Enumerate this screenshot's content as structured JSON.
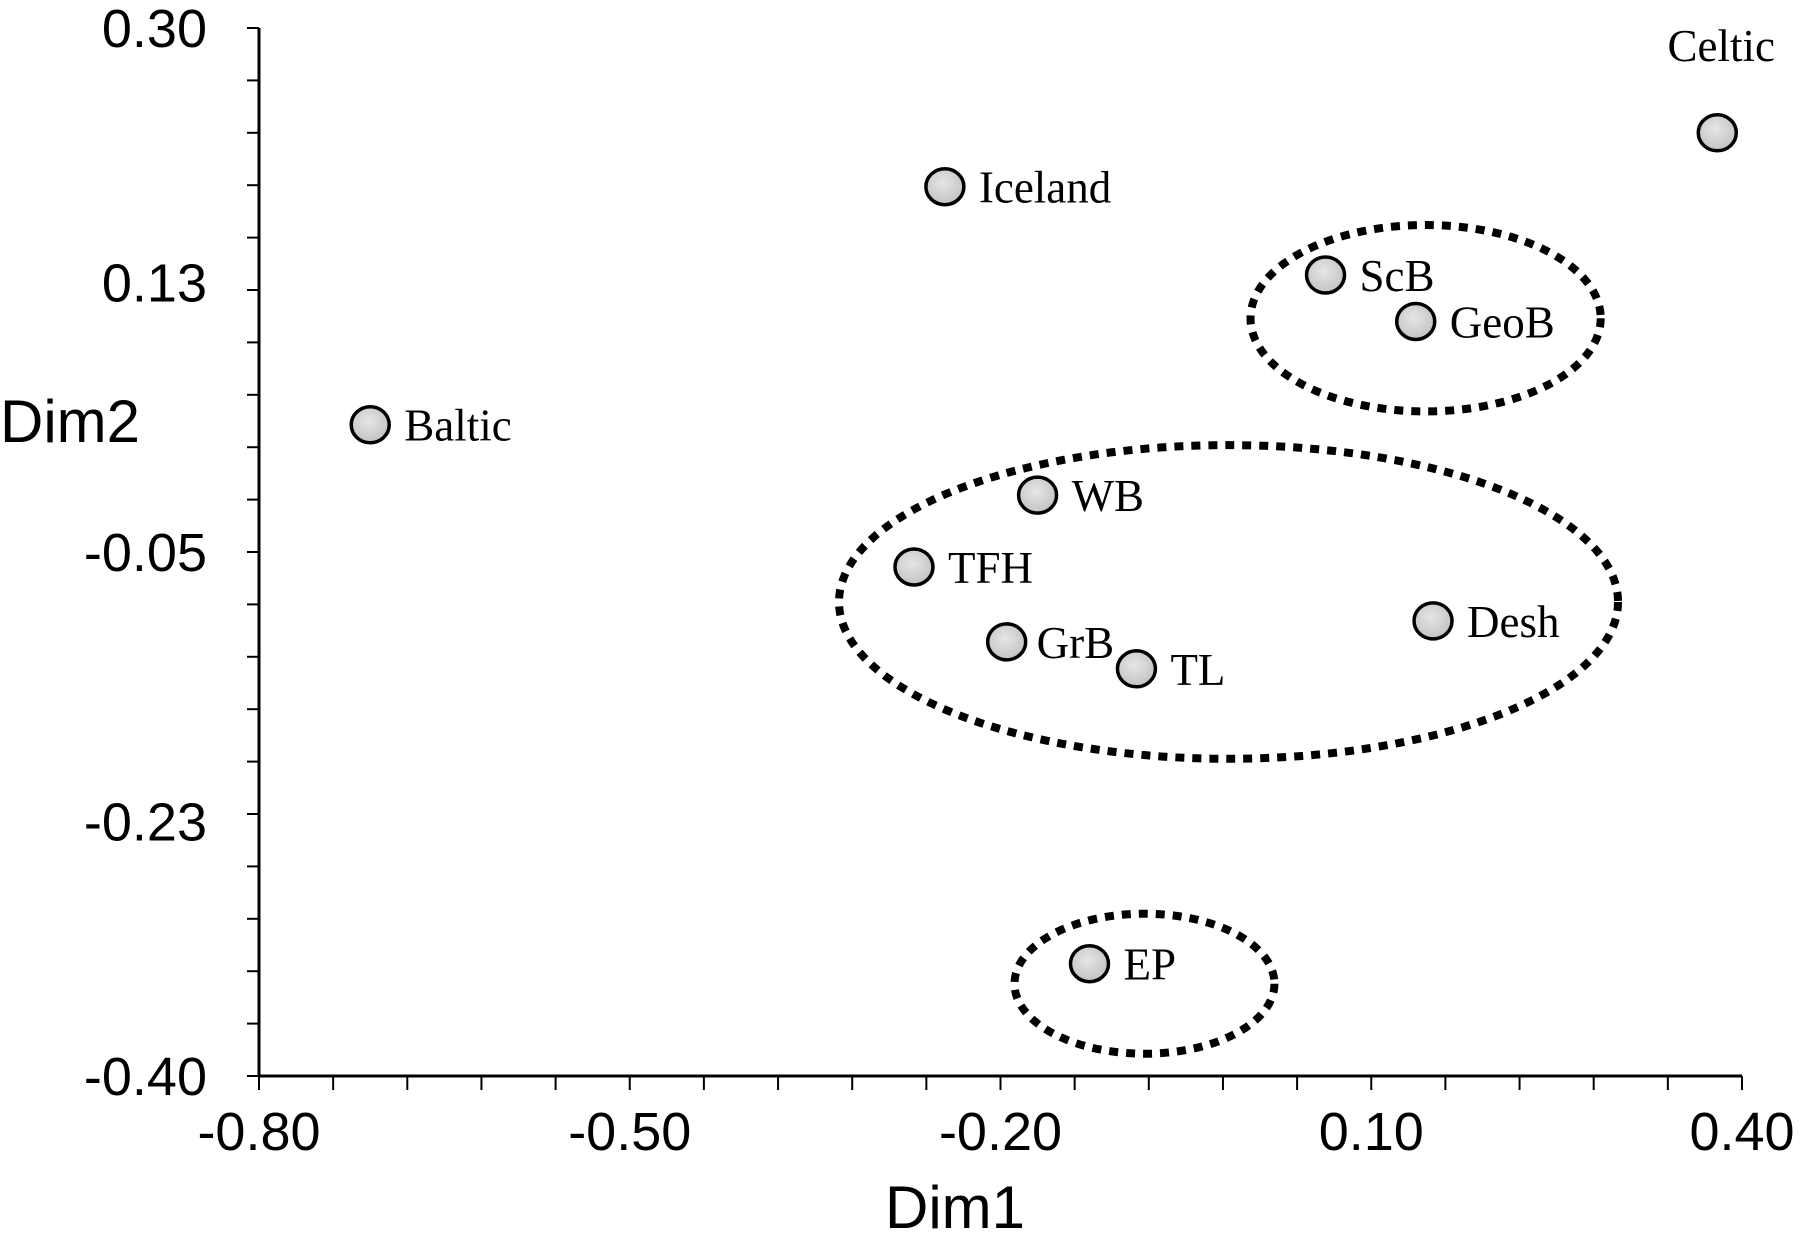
{
  "chart_data": {
    "type": "scatter",
    "title": "",
    "xlabel": "Dim1",
    "ylabel": "Dim2",
    "xlim": [
      -0.8,
      0.4
    ],
    "ylim": [
      -0.4,
      0.3
    ],
    "x_ticks": [
      "-0.80",
      "-0.50",
      "-0.20",
      "0.10",
      "0.40"
    ],
    "y_ticks": [
      "0.30",
      "0.13",
      "-0.05",
      "-0.23",
      "-0.40"
    ],
    "x_tick_values": [
      -0.8,
      -0.5,
      -0.2,
      0.1,
      0.4
    ],
    "y_tick_values": [
      0.3,
      0.13,
      -0.05,
      -0.23,
      -0.4
    ],
    "grid": false,
    "legend": "none",
    "points": [
      {
        "label": "Celtic",
        "x": 0.38,
        "y": 0.23
      },
      {
        "label": "Iceland",
        "x": -0.245,
        "y": 0.194
      },
      {
        "label": "ScB",
        "x": 0.063,
        "y": 0.135
      },
      {
        "label": "GeoB",
        "x": 0.136,
        "y": 0.104
      },
      {
        "label": "Baltic",
        "x": -0.71,
        "y": 0.035
      },
      {
        "label": "WB",
        "x": -0.17,
        "y": -0.012
      },
      {
        "label": "TFH",
        "x": -0.27,
        "y": -0.06
      },
      {
        "label": "GrB",
        "x": -0.195,
        "y": -0.11
      },
      {
        "label": "TL",
        "x": -0.09,
        "y": -0.128
      },
      {
        "label": "Desh",
        "x": 0.15,
        "y": -0.096
      },
      {
        "label": "EP",
        "x": -0.128,
        "y": -0.325
      }
    ],
    "groups": [
      {
        "members": [
          "ScB",
          "GeoB"
        ],
        "style": "dotted-ellipse"
      },
      {
        "members": [
          "WB",
          "TFH",
          "GrB",
          "TL",
          "Desh"
        ],
        "style": "dotted-ellipse"
      },
      {
        "members": [
          "EP"
        ],
        "style": "dotted-ellipse"
      }
    ],
    "colors": {
      "marker_fill": "#d4d4d4",
      "marker_stroke": "#000000",
      "axis": "#000000"
    }
  }
}
